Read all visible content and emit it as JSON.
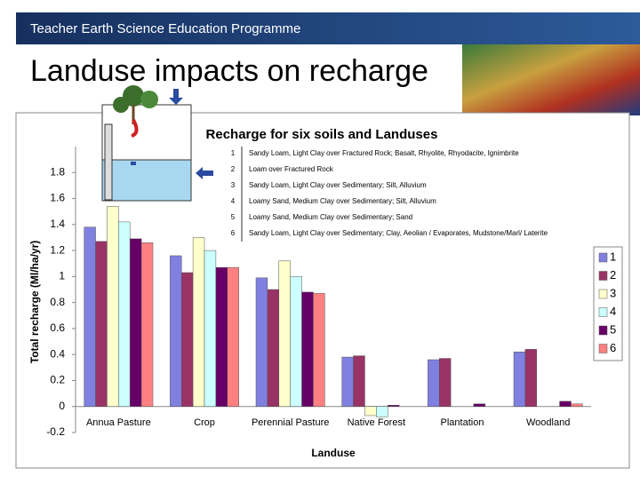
{
  "header": {
    "programme": "Teacher Earth Science Education Programme",
    "title": "Landuse impacts on recharge"
  },
  "chart_data": {
    "type": "bar",
    "title": "Recharge for six soils and Landuses",
    "x_label": "Landuse",
    "y_label": "Total recharge (Ml/ha/yr)",
    "categories": [
      "Annua Pasture",
      "Crop",
      "Perennial Pasture",
      "Native Forest",
      "Plantation",
      "Woodland"
    ],
    "series": [
      {
        "name": "1",
        "color": "#8080e0",
        "values": [
          1.38,
          1.16,
          0.99,
          0.38,
          0.36,
          0.42
        ]
      },
      {
        "name": "2",
        "color": "#993366",
        "values": [
          1.27,
          1.03,
          0.9,
          0.39,
          0.37,
          0.44
        ]
      },
      {
        "name": "3",
        "color": "#ffffcc",
        "values": [
          1.54,
          1.3,
          1.12,
          -0.07,
          0,
          0
        ]
      },
      {
        "name": "4",
        "color": "#ccffff",
        "values": [
          1.42,
          1.2,
          1.0,
          -0.08,
          0,
          0
        ]
      },
      {
        "name": "5",
        "color": "#660066",
        "values": [
          1.29,
          1.07,
          0.88,
          0.01,
          0.02,
          0.04
        ]
      },
      {
        "name": "6",
        "color": "#ff8080",
        "values": [
          1.26,
          1.07,
          0.87,
          0,
          0,
          0.02
        ]
      }
    ],
    "soil_descriptions": [
      "Sandy Loam, Light Clay over Fractured Rock; Basalt, Rhyolite, Rhyodacite, Ignimbrite",
      "Loam over Fractured Rock",
      "Sandy Loam, Light Clay over Sedimentary; Silt, Alluvium",
      "Loamy Sand, Medium Clay over Sedimentary; Silt, Alluvium",
      "Loamy Sand, Medium Clay over Sedimentary; Sand",
      "Sandy Loam, Light Clay over Sedimentary; Clay, Aeolian / Evaporates, Mudstone/Marl/ Laterite"
    ],
    "ylim": [
      -0.2,
      2.0
    ],
    "yticks": [
      -0.2,
      0,
      0.2,
      0.4,
      0.6,
      0.8,
      1,
      1.2,
      1.4,
      1.6,
      1.8
    ],
    "legend": "right"
  }
}
